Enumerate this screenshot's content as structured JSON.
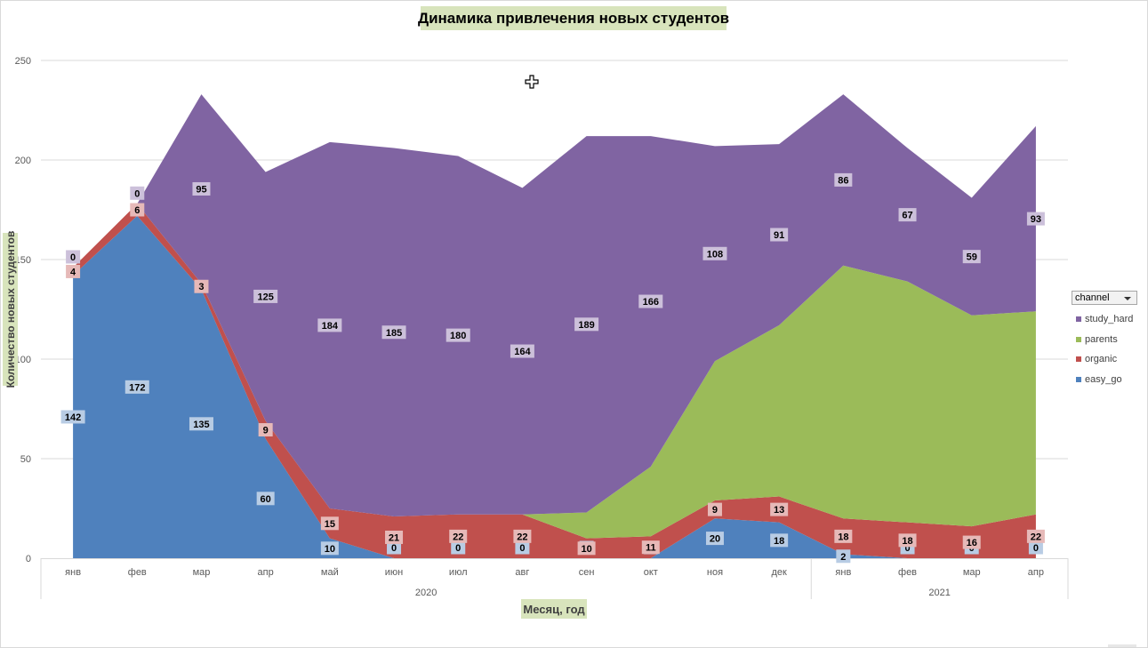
{
  "chart_data": {
    "type": "area",
    "stacked": true,
    "title": "Динамика привлечения новых студентов",
    "xlabel": "Месяц, год",
    "ylabel": "Количество новых студентов",
    "ylim": [
      0,
      250
    ],
    "yticks": [
      0,
      50,
      100,
      150,
      200,
      250
    ],
    "ytick_labels": [
      "0",
      "50",
      "100",
      "150",
      "200",
      "250"
    ],
    "grid": true,
    "categories": [
      "янв",
      "фев",
      "мар",
      "апр",
      "май",
      "июн",
      "июл",
      "авг",
      "сен",
      "окт",
      "ноя",
      "дек",
      "янв",
      "фев",
      "мар",
      "апр"
    ],
    "year_groups": [
      {
        "label": "2020",
        "start": 0,
        "end": 11
      },
      {
        "label": "2021",
        "start": 12,
        "end": 15
      }
    ],
    "legend_title": "channel",
    "legend_position": "right",
    "series": [
      {
        "name": "easy_go",
        "color": "#4f81bd",
        "label_bg": "#b8cce4",
        "values": [
          142,
          172,
          135,
          60,
          10,
          0,
          0,
          0,
          0,
          0,
          20,
          18,
          2,
          0,
          0,
          0
        ],
        "labels": [
          "142",
          "172",
          "135",
          "60",
          "10",
          "0",
          "0",
          "0",
          "0",
          "0",
          "20",
          "18",
          "2",
          "0",
          "0",
          "0"
        ]
      },
      {
        "name": "organic",
        "color": "#c0504d",
        "label_bg": "#e6b9b8",
        "values": [
          4,
          6,
          3,
          9,
          15,
          21,
          22,
          22,
          10,
          11,
          9,
          13,
          18,
          18,
          16,
          22
        ],
        "labels": [
          "4",
          "6",
          "3",
          "9",
          "15",
          "21",
          "22",
          "22",
          "10",
          "11",
          "9",
          "13",
          "18",
          "18",
          "16",
          "22"
        ]
      },
      {
        "name": "parents",
        "color": "#9bbb59",
        "label_bg": null,
        "values": [
          0,
          0,
          0,
          0,
          0,
          0,
          0,
          0,
          13,
          35,
          70,
          86,
          127,
          121,
          106,
          102
        ],
        "labels": []
      },
      {
        "name": "study_hard",
        "color": "#8064a2",
        "label_bg": "#ccc0da",
        "values": [
          0,
          0,
          95,
          125,
          184,
          185,
          180,
          164,
          189,
          166,
          108,
          91,
          86,
          67,
          59,
          93
        ],
        "labels": [
          "0",
          "0",
          "95",
          "125",
          "184",
          "185",
          "180",
          "164",
          "189",
          "166",
          "108",
          "91",
          "86",
          "67",
          "59",
          "93"
        ]
      }
    ]
  }
}
